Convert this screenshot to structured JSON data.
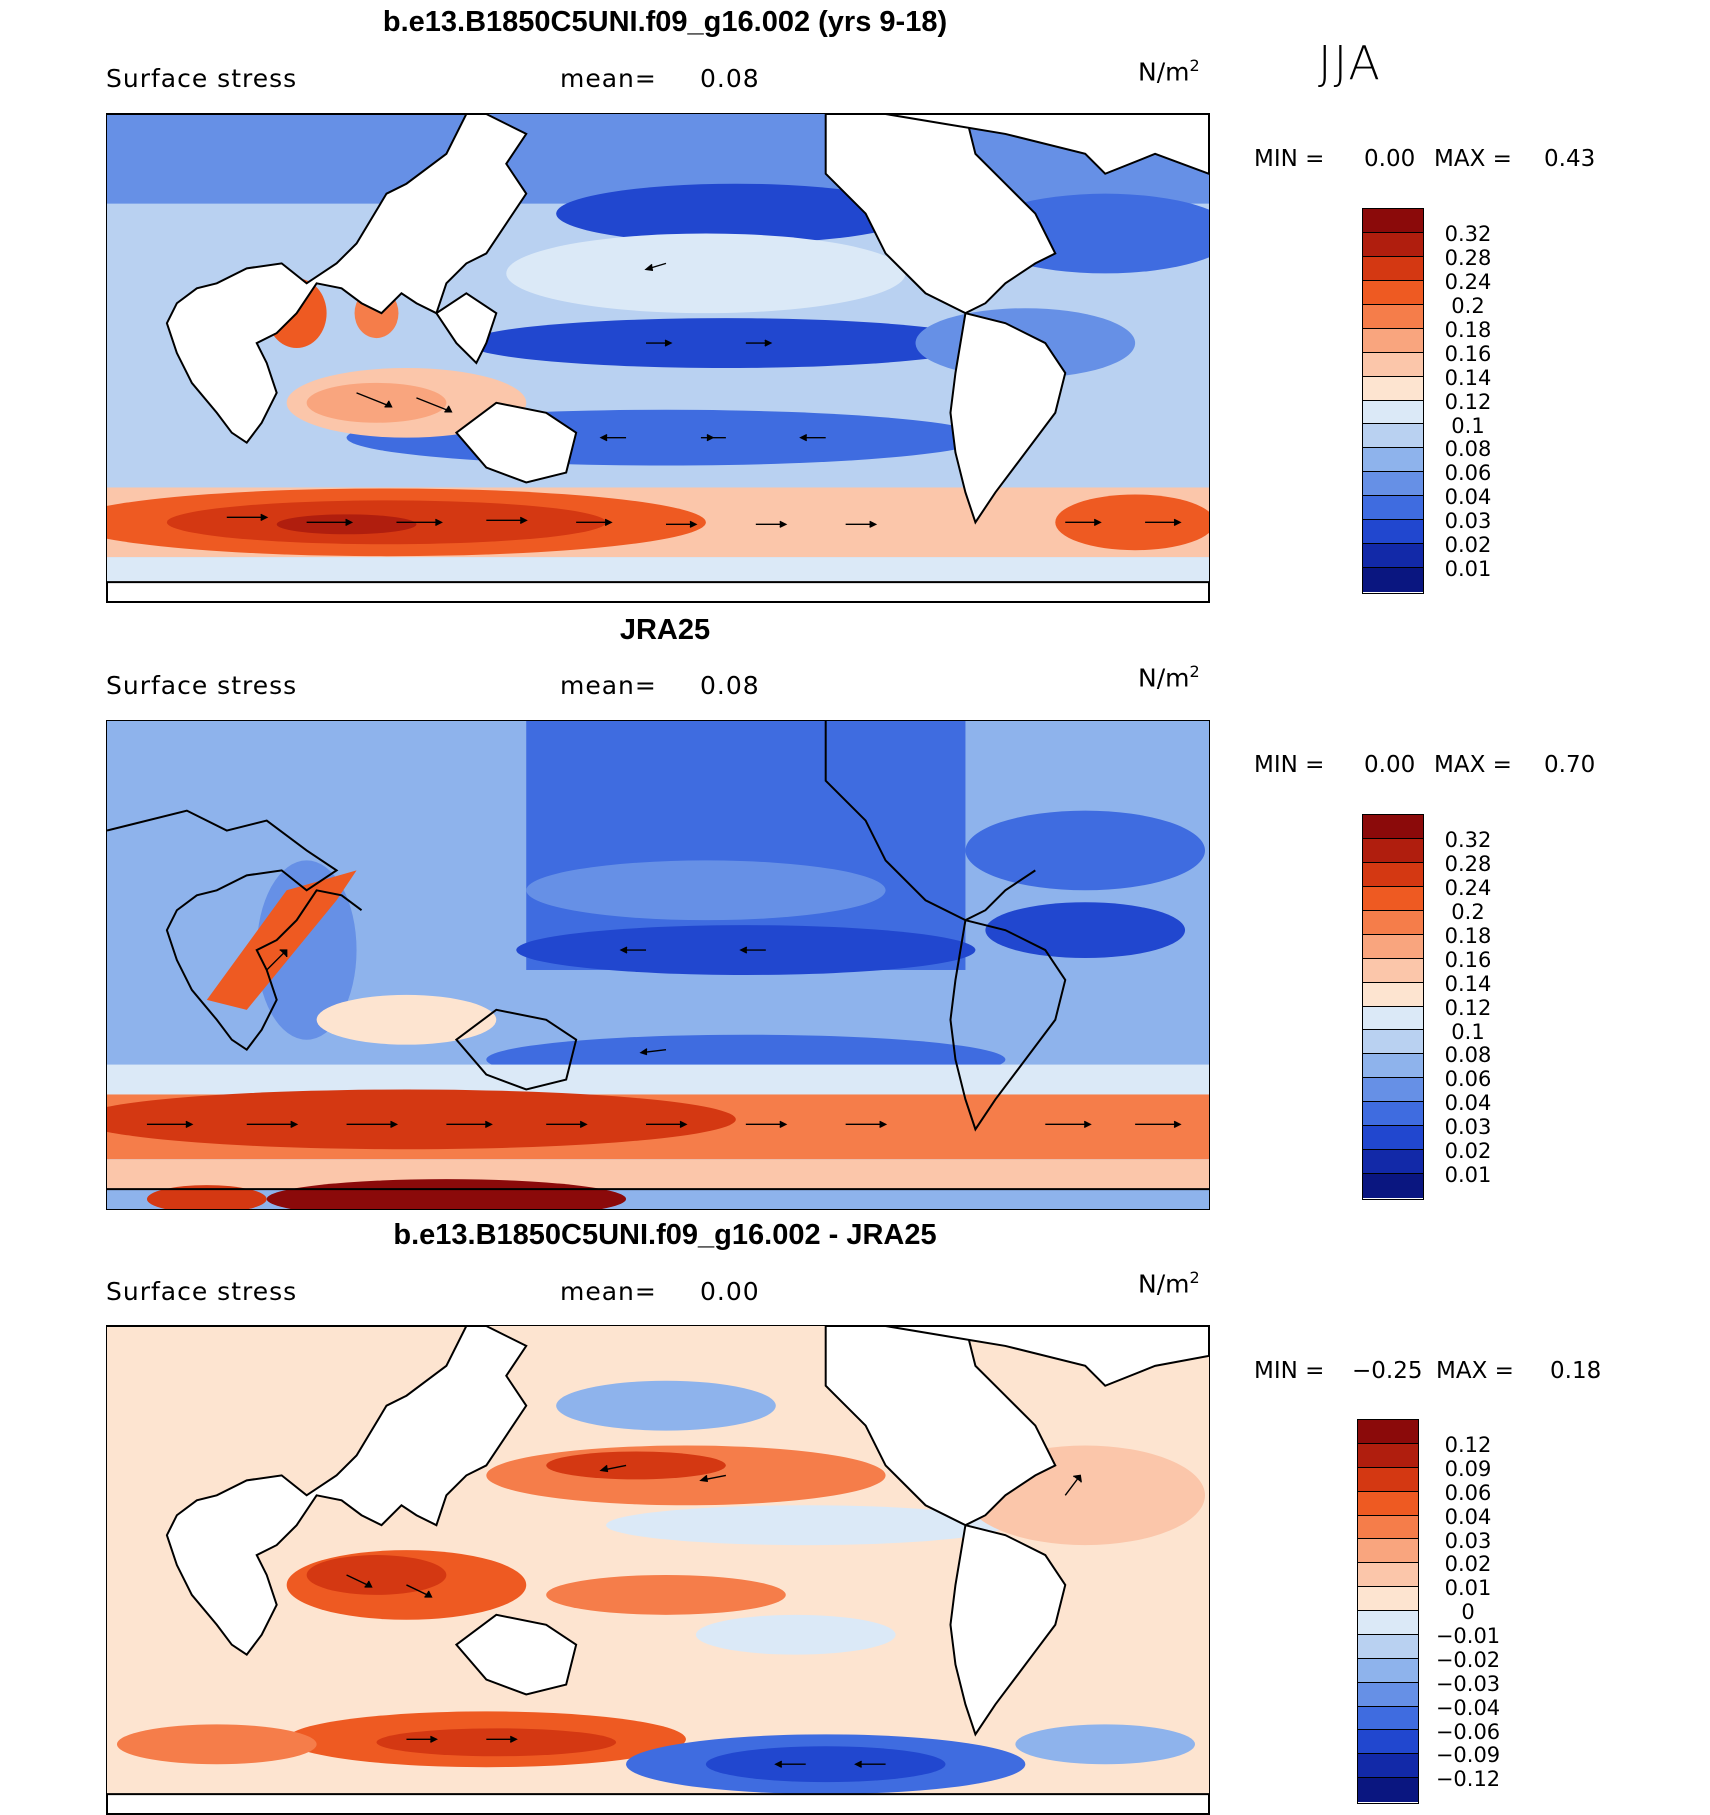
{
  "season": "JJA",
  "panels": [
    {
      "title": "b.e13.B1850C5UNI.f09_g16.002 (yrs 9-18)",
      "variable": "Surface stress",
      "mean_label": "mean=",
      "mean_value": "0.08",
      "units": "N/m",
      "units_exp": "2",
      "min_label": "MIN =",
      "min_value": "0.00",
      "max_label": "MAX =",
      "max_value": "0.43"
    },
    {
      "title": "JRA25",
      "variable": "Surface stress",
      "mean_label": "mean=",
      "mean_value": "0.08",
      "units": "N/m",
      "units_exp": "2",
      "min_label": "MIN =",
      "min_value": "0.00",
      "max_label": "MAX =",
      "max_value": "0.70"
    },
    {
      "title": "b.e13.B1850C5UNI.f09_g16.002 - JRA25",
      "variable": "Surface stress",
      "mean_label": "mean=",
      "mean_value": "0.00",
      "units": "N/m",
      "units_exp": "2",
      "min_label": "MIN =",
      "min_value": "−0.25",
      "max_label": "MAX =",
      "max_value": "0.18"
    }
  ],
  "colorbars": {
    "field": {
      "labels": [
        "0.32",
        "0.28",
        "0.24",
        "0.2",
        "0.18",
        "0.16",
        "0.14",
        "0.12",
        "0.1",
        "0.08",
        "0.06",
        "0.04",
        "0.03",
        "0.02",
        "0.01"
      ],
      "colors": [
        "#8b0a0a",
        "#b01e0e",
        "#d43812",
        "#ee5a22",
        "#f57d4a",
        "#f9a57e",
        "#fbc6aa",
        "#fde4d0",
        "#dbe9f7",
        "#b9d1f1",
        "#8eb3ec",
        "#6690e6",
        "#3f6ce0",
        "#2147cf",
        "#1229a8",
        "#0a1680"
      ]
    },
    "diff": {
      "labels": [
        "0.12",
        "0.09",
        "0.06",
        "0.04",
        "0.03",
        "0.02",
        "0.01",
        "0",
        "−0.01",
        "−0.02",
        "−0.03",
        "−0.04",
        "−0.06",
        "−0.09",
        "−0.12"
      ],
      "colors": [
        "#8b0a0a",
        "#b01e0e",
        "#d43812",
        "#ee5a22",
        "#f57d4a",
        "#f9a57e",
        "#fbc6aa",
        "#fde4d0",
        "#dbe9f7",
        "#b9d1f1",
        "#8eb3ec",
        "#6690e6",
        "#3f6ce0",
        "#2147cf",
        "#1229a8",
        "#0a1680"
      ]
    }
  },
  "map_colors": {
    "land": "#ffffff",
    "coast": "#000000",
    "strong_red": "#c8300e",
    "mid_red": "#f07a4a",
    "light_red": "#fbc6aa",
    "pale": "#dbe9f7",
    "light_blue": "#b9d1f1",
    "mid_blue": "#6690e6",
    "deep_blue": "#2147cf"
  }
}
